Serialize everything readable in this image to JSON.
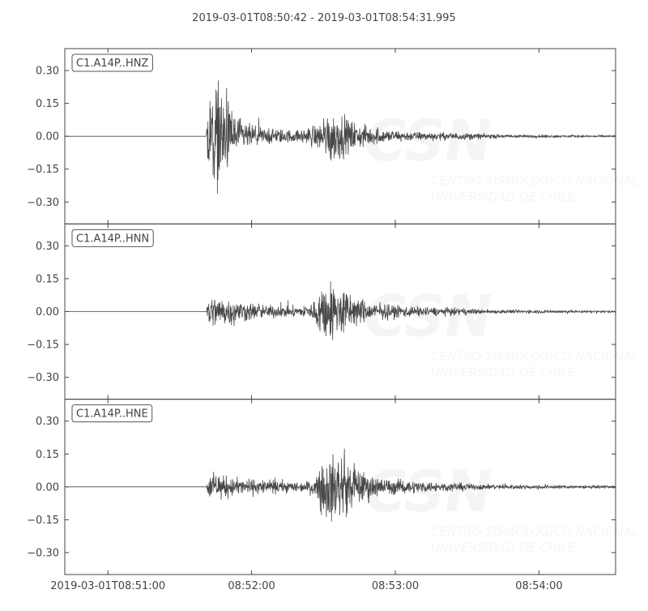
{
  "chart_data": {
    "type": "line",
    "title": "2019-03-01T08:50:42  -  2019-03-01T08:54:31.995",
    "x_range": [
      "08:50:42",
      "08:54:31.995"
    ],
    "ylim": [
      -0.4,
      0.4
    ],
    "x_ticks": [
      {
        "time": "08:51:00",
        "label": "2019-03-01T08:51:00"
      },
      {
        "time": "08:52:00",
        "label": "08:52:00"
      },
      {
        "time": "08:53:00",
        "label": "08:53:00"
      },
      {
        "time": "08:54:00",
        "label": "08:54:00"
      }
    ],
    "y_ticks": [
      {
        "value": 0.3,
        "label": "0.30"
      },
      {
        "value": 0.15,
        "label": "0.15"
      },
      {
        "value": 0.0,
        "label": "0.00"
      },
      {
        "value": -0.15,
        "label": "−0.15"
      },
      {
        "value": -0.3,
        "label": "−0.30"
      }
    ],
    "grid": false,
    "line_color": "#484848",
    "axis_color": "#444444",
    "watermark": {
      "logo": "CSN",
      "line1": "CENTRO SISMOLÓGICO NACIONAL",
      "line2": "UNIVERSIDAD DE CHILE"
    },
    "series": [
      {
        "name": "C1.A14P..HNZ",
        "amplitude_envelope": [
          [
            "08:50:42",
            0.003
          ],
          [
            "08:51:41",
            0.003
          ],
          [
            "08:51:42",
            0.28
          ],
          [
            "08:51:47",
            0.3
          ],
          [
            "08:51:52",
            0.15
          ],
          [
            "08:51:57",
            0.08
          ],
          [
            "08:52:05",
            0.05
          ],
          [
            "08:52:20",
            0.035
          ],
          [
            "08:52:30",
            0.09
          ],
          [
            "08:52:33",
            0.17
          ],
          [
            "08:52:38",
            0.12
          ],
          [
            "08:52:45",
            0.07
          ],
          [
            "08:52:55",
            0.04
          ],
          [
            "08:53:10",
            0.025
          ],
          [
            "08:53:30",
            0.02
          ],
          [
            "08:53:45",
            0.01
          ],
          [
            "08:54:32",
            0.005
          ]
        ]
      },
      {
        "name": "C1.A14P..HNN",
        "amplitude_envelope": [
          [
            "08:50:42",
            0.002
          ],
          [
            "08:51:41",
            0.002
          ],
          [
            "08:51:42",
            0.1
          ],
          [
            "08:51:50",
            0.08
          ],
          [
            "08:52:05",
            0.04
          ],
          [
            "08:52:20",
            0.03
          ],
          [
            "08:52:26",
            0.06
          ],
          [
            "08:52:30",
            0.18
          ],
          [
            "08:52:36",
            0.17
          ],
          [
            "08:52:42",
            0.1
          ],
          [
            "08:52:50",
            0.05
          ],
          [
            "08:53:10",
            0.03
          ],
          [
            "08:53:40",
            0.012
          ],
          [
            "08:54:32",
            0.006
          ]
        ]
      },
      {
        "name": "C1.A14P..HNE",
        "amplitude_envelope": [
          [
            "08:50:42",
            0.002
          ],
          [
            "08:51:41",
            0.002
          ],
          [
            "08:51:42",
            0.08
          ],
          [
            "08:51:55",
            0.05
          ],
          [
            "08:52:20",
            0.03
          ],
          [
            "08:52:27",
            0.04
          ],
          [
            "08:52:29",
            0.18
          ],
          [
            "08:52:37",
            0.2
          ],
          [
            "08:52:45",
            0.1
          ],
          [
            "08:52:55",
            0.05
          ],
          [
            "08:53:15",
            0.03
          ],
          [
            "08:53:40",
            0.015
          ],
          [
            "08:54:32",
            0.007
          ]
        ]
      }
    ]
  }
}
